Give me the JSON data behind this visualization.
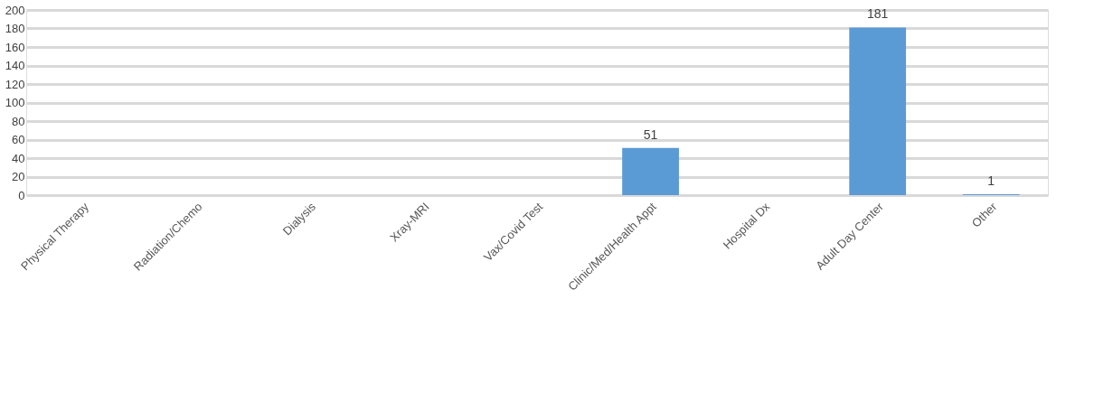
{
  "chart_data": {
    "type": "bar",
    "categories": [
      "Physical Therapy",
      "Radiation/Chemo",
      "Dialysis",
      "Xray-MRI",
      "Vax/Covid Test",
      "Clinic/Med/Health Appt",
      "Hospital Dx",
      "Adult Day Center",
      "Other"
    ],
    "values": [
      0,
      0,
      0,
      0,
      0,
      51,
      0,
      181,
      1
    ],
    "value_labels": [
      null,
      null,
      null,
      null,
      null,
      "51",
      null,
      "181",
      "1"
    ],
    "color": "#5b9bd5",
    "ylim": [
      0,
      200
    ],
    "yticks": [
      0,
      20,
      40,
      60,
      80,
      100,
      120,
      140,
      160,
      180,
      200
    ],
    "grid": "y"
  }
}
